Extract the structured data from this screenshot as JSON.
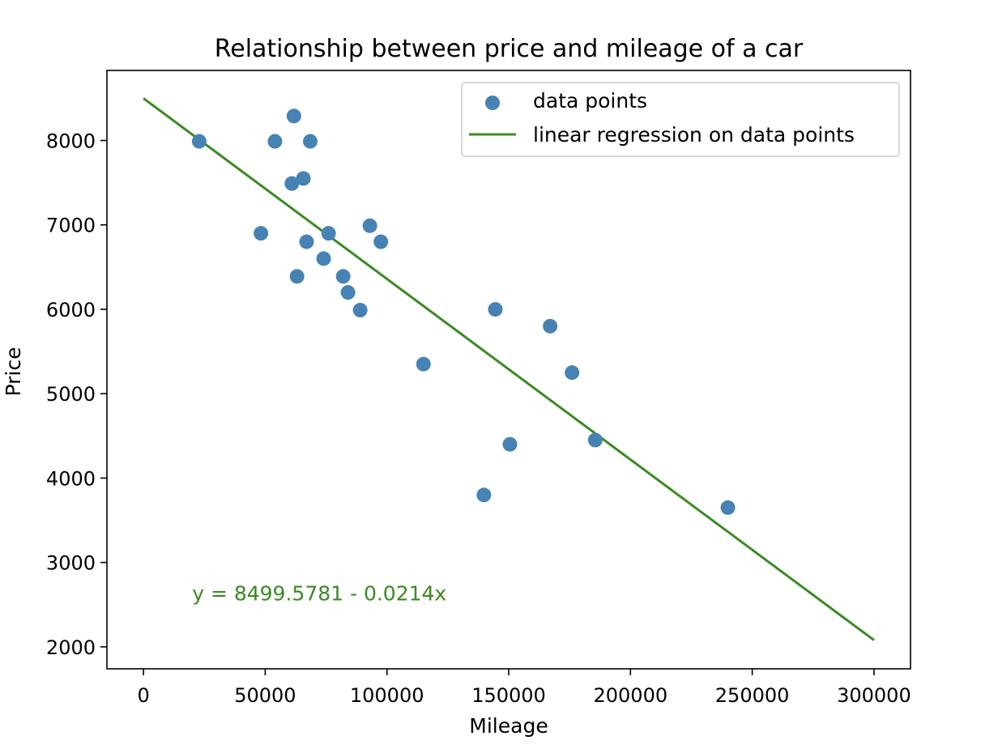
{
  "chart_data": {
    "type": "scatter",
    "title": "Relationship between price and mileage of a car",
    "xlabel": "Mileage",
    "ylabel": "Price",
    "xlim": [
      -15000,
      315000
    ],
    "ylim": [
      1740,
      8830
    ],
    "xticks": [
      0,
      50000,
      100000,
      150000,
      200000,
      250000,
      300000
    ],
    "xtick_labels": [
      "0",
      "50000",
      "100000",
      "150000",
      "200000",
      "250000",
      "300000"
    ],
    "yticks": [
      2000,
      3000,
      4000,
      5000,
      6000,
      7000,
      8000
    ],
    "ytick_labels": [
      "2000",
      "3000",
      "4000",
      "5000",
      "6000",
      "7000",
      "8000"
    ],
    "grid": false,
    "legend_position": "top-right",
    "series": [
      {
        "name": "data points",
        "kind": "scatter",
        "color": "#4682b4",
        "points": [
          {
            "x": 22899,
            "y": 7990
          },
          {
            "x": 48235,
            "y": 6900
          },
          {
            "x": 54000,
            "y": 7990
          },
          {
            "x": 60949,
            "y": 7490
          },
          {
            "x": 61789,
            "y": 8290
          },
          {
            "x": 63060,
            "y": 6390
          },
          {
            "x": 65674,
            "y": 7550
          },
          {
            "x": 67000,
            "y": 6800
          },
          {
            "x": 68500,
            "y": 7990
          },
          {
            "x": 74000,
            "y": 6600
          },
          {
            "x": 76025,
            "y": 6900
          },
          {
            "x": 82029,
            "y": 6390
          },
          {
            "x": 84000,
            "y": 6200
          },
          {
            "x": 89000,
            "y": 5990
          },
          {
            "x": 93000,
            "y": 6990
          },
          {
            "x": 97500,
            "y": 6800
          },
          {
            "x": 115000,
            "y": 5350
          },
          {
            "x": 139800,
            "y": 3800
          },
          {
            "x": 144500,
            "y": 5999
          },
          {
            "x": 150500,
            "y": 4400
          },
          {
            "x": 167000,
            "y": 5800
          },
          {
            "x": 176000,
            "y": 5250
          },
          {
            "x": 185530,
            "y": 4450
          },
          {
            "x": 240000,
            "y": 3650
          }
        ]
      },
      {
        "name": "linear regression on data points",
        "kind": "line",
        "color": "#3a8a22",
        "intercept": 8499.5781,
        "slope": -0.0214,
        "x_range": [
          0,
          300000
        ]
      }
    ],
    "annotations": [
      {
        "text": "y = 8499.5781 - 0.0214x",
        "x": 20000,
        "y": 2550,
        "color": "#3a8a22"
      }
    ]
  }
}
